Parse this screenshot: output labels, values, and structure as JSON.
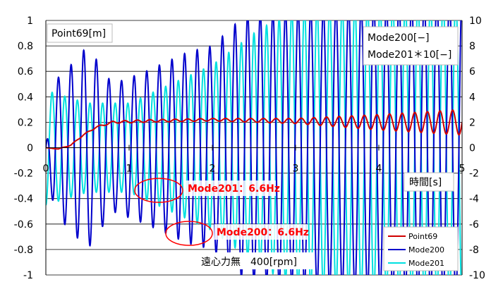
{
  "chart_data": {
    "type": "line",
    "x_range": [
      0,
      5
    ],
    "x_ticks": [
      "0",
      "1",
      "2",
      "3",
      "4",
      "5"
    ],
    "y_left": {
      "label": "Point69[m]",
      "range": [
        -1,
        1
      ],
      "ticks": [
        "1",
        "0.8",
        "0.6",
        "0.4",
        "0.2",
        "0",
        "-0.2",
        "-0.4",
        "-0.6",
        "-0.8",
        "-1"
      ]
    },
    "y_right": {
      "label_lines": [
        "Mode200[−]",
        "Mode201＊10[−]"
      ],
      "range": [
        -10,
        10
      ],
      "ticks": [
        "10",
        "8",
        "6",
        "4",
        "2",
        "0",
        "-2",
        "-4",
        "-6",
        "-8",
        "-10"
      ]
    },
    "x_label": "時間[s]",
    "grid": true,
    "legend_position": "bottom-right",
    "series": [
      {
        "name": "Point69",
        "axis": "left",
        "color": "#d00000",
        "frequency_hz": 6.6,
        "points": [
          [
            0,
            0
          ],
          [
            0.15,
            -0.01
          ],
          [
            0.3,
            0.02
          ],
          [
            0.45,
            0.1
          ],
          [
            0.6,
            0.16
          ],
          [
            0.8,
            0.2
          ],
          [
            1.2,
            0.21
          ],
          [
            2.0,
            0.22
          ],
          [
            3.0,
            0.21
          ],
          [
            4.0,
            0.2
          ],
          [
            5.0,
            0.2
          ]
        ],
        "oscillation_amplitude": [
          [
            0,
            0
          ],
          [
            1,
            0.01
          ],
          [
            2,
            0.01
          ],
          [
            3,
            0.02
          ],
          [
            3.5,
            0.04
          ],
          [
            4.0,
            0.06
          ],
          [
            4.5,
            0.08
          ],
          [
            5.0,
            0.1
          ]
        ]
      },
      {
        "name": "Mode200",
        "axis": "right",
        "color": "#0000cc",
        "frequency_hz": 6.6,
        "envelope": [
          [
            0,
            0
          ],
          [
            0.1,
            5.2
          ],
          [
            0.3,
            6.5
          ],
          [
            0.5,
            8
          ],
          [
            0.8,
            5
          ],
          [
            1.2,
            6
          ],
          [
            1.7,
            7.5
          ],
          [
            2.0,
            8
          ],
          [
            2.4,
            10.5
          ],
          [
            5.0,
            12
          ]
        ]
      },
      {
        "name": "Mode201",
        "axis": "right",
        "color": "#00e0e0",
        "frequency_hz": 6.6,
        "envelope": [
          [
            0,
            4.5
          ],
          [
            0.5,
            3.5
          ],
          [
            1.0,
            3.5
          ],
          [
            1.5,
            5
          ],
          [
            2.0,
            6.5
          ],
          [
            2.5,
            9
          ],
          [
            3.0,
            11
          ],
          [
            5.0,
            12
          ]
        ]
      }
    ],
    "annotations": [
      {
        "text": "Mode201：6.6Hz",
        "x": 1.4,
        "y": -0.32
      },
      {
        "text": "Mode200：6.6Hz",
        "x": 1.75,
        "y": -0.65
      }
    ],
    "footnote": "遠心力無　400[rpm]"
  }
}
